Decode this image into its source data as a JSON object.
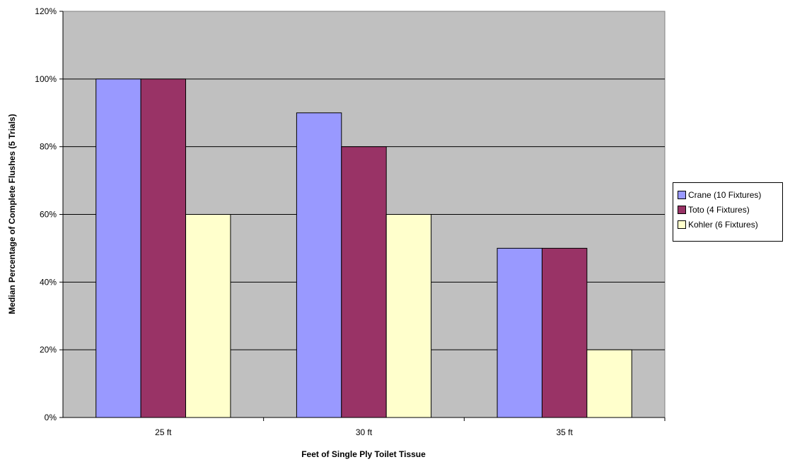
{
  "chart_data": {
    "type": "bar",
    "title": "",
    "xlabel": "Feet of Single Ply Toilet Tissue",
    "ylabel": "Median Percentage of Complete Flushes (5 Trials)",
    "categories": [
      "25 ft",
      "30 ft",
      "35 ft"
    ],
    "series": [
      {
        "name": "Crane (10 Fixtures)",
        "color": "#9999ff",
        "values": [
          100,
          90,
          50
        ]
      },
      {
        "name": "Toto (4 Fixtures)",
        "color": "#993366",
        "values": [
          100,
          80,
          50
        ]
      },
      {
        "name": "Kohler (6 Fixtures)",
        "color": "#ffffcc",
        "values": [
          60,
          60,
          20
        ]
      }
    ],
    "ylim": [
      0,
      120
    ],
    "yticks": [
      "0%",
      "20%",
      "40%",
      "60%",
      "80%",
      "100%",
      "120%"
    ],
    "grid": true,
    "plot_background": "#c0c0c0",
    "legend_position": "right"
  }
}
